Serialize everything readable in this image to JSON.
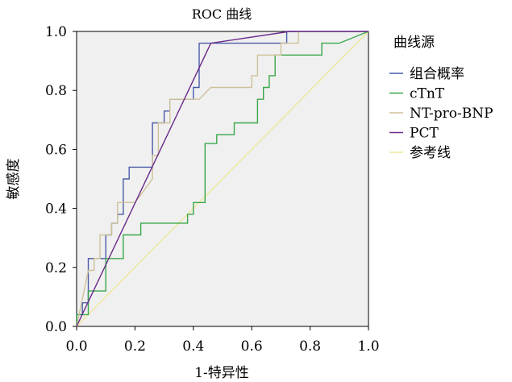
{
  "chart_data": {
    "type": "line",
    "title": "ROC 曲线",
    "xlabel": "1-特异性",
    "ylabel": "敏感度",
    "xlim": [
      0.0,
      1.0
    ],
    "ylim": [
      0.0,
      1.0
    ],
    "x_ticks": [
      "0.0",
      "0.2",
      "0.4",
      "0.6",
      "0.8",
      "1.0"
    ],
    "y_ticks": [
      "0.0",
      "0.2",
      "0.4",
      "0.6",
      "0.8",
      "1.0"
    ],
    "grid": false,
    "legend": {
      "title": "曲线源",
      "position": "right"
    },
    "series": [
      {
        "name": "组合概率",
        "color": "#4a5aa8",
        "x": [
          0.0,
          0.0,
          0.02,
          0.02,
          0.04,
          0.04,
          0.1,
          0.1,
          0.12,
          0.12,
          0.14,
          0.14,
          0.16,
          0.16,
          0.18,
          0.18,
          0.26,
          0.26,
          0.3,
          0.3,
          0.32,
          0.32,
          0.4,
          0.4,
          0.42,
          0.42,
          0.72,
          0.72,
          0.74,
          0.74,
          1.0
        ],
        "y": [
          0.0,
          0.04,
          0.04,
          0.08,
          0.08,
          0.23,
          0.23,
          0.31,
          0.31,
          0.35,
          0.35,
          0.38,
          0.38,
          0.5,
          0.5,
          0.54,
          0.54,
          0.69,
          0.69,
          0.73,
          0.73,
          0.77,
          0.77,
          0.81,
          0.81,
          0.96,
          0.96,
          1.0,
          1.0,
          1.0,
          1.0
        ]
      },
      {
        "name": "cTnT",
        "color": "#3aa84a",
        "x": [
          0.0,
          0.0,
          0.04,
          0.04,
          0.1,
          0.1,
          0.16,
          0.16,
          0.22,
          0.22,
          0.38,
          0.38,
          0.4,
          0.4,
          0.44,
          0.44,
          0.48,
          0.48,
          0.5,
          0.5,
          0.54,
          0.54,
          0.56,
          0.56,
          0.62,
          0.62,
          0.64,
          0.64,
          0.66,
          0.66,
          0.68,
          0.68,
          0.7,
          0.7,
          0.84,
          0.84,
          0.9,
          1.0
        ],
        "y": [
          0.0,
          0.04,
          0.04,
          0.12,
          0.12,
          0.23,
          0.23,
          0.31,
          0.31,
          0.35,
          0.35,
          0.38,
          0.38,
          0.42,
          0.42,
          0.62,
          0.62,
          0.65,
          0.65,
          0.65,
          0.65,
          0.69,
          0.69,
          0.69,
          0.69,
          0.77,
          0.77,
          0.81,
          0.81,
          0.85,
          0.85,
          0.92,
          0.92,
          0.92,
          0.92,
          0.96,
          0.96,
          1.0
        ]
      },
      {
        "name": "NT-pro-BNP",
        "color": "#cfc29a",
        "x": [
          0.0,
          0.04,
          0.04,
          0.06,
          0.06,
          0.08,
          0.08,
          0.12,
          0.12,
          0.14,
          0.14,
          0.2,
          0.26,
          0.26,
          0.28,
          0.28,
          0.32,
          0.32,
          0.34,
          0.38,
          0.42,
          0.46,
          0.46,
          0.6,
          0.6,
          0.62,
          0.62,
          0.7,
          0.7,
          0.74,
          0.74,
          0.76,
          0.76,
          1.0
        ],
        "y": [
          0.0,
          0.19,
          0.19,
          0.19,
          0.23,
          0.23,
          0.31,
          0.31,
          0.35,
          0.35,
          0.42,
          0.42,
          0.5,
          0.58,
          0.58,
          0.69,
          0.69,
          0.77,
          0.77,
          0.77,
          0.77,
          0.81,
          0.81,
          0.81,
          0.85,
          0.85,
          0.92,
          0.92,
          0.96,
          0.96,
          0.96,
          0.96,
          1.0,
          1.0
        ]
      },
      {
        "name": "PCT",
        "color": "#6a2a8a",
        "x": [
          0.0,
          0.46,
          0.73,
          1.0
        ],
        "y": [
          0.0,
          0.96,
          1.0,
          1.0
        ]
      },
      {
        "name": "参考线",
        "color": "#eee89a",
        "x": [
          0.0,
          1.0
        ],
        "y": [
          0.0,
          1.0
        ]
      }
    ]
  }
}
